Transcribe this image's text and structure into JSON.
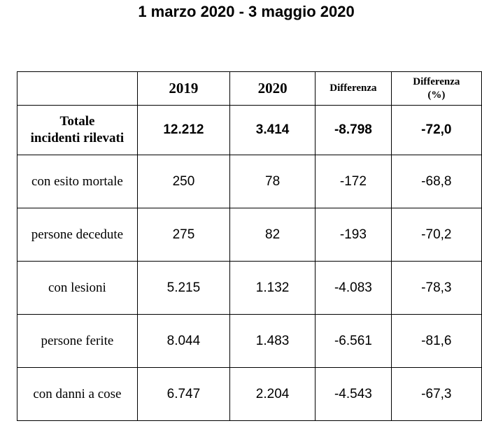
{
  "title": "1 marzo 2020 - 3 maggio 2020",
  "table": {
    "headers": [
      "",
      "2019",
      "2020",
      "Differenza",
      "Differenza (%)"
    ],
    "header_diff_pct_line1": "Differenza",
    "header_diff_pct_line2": "(%)",
    "total_row": {
      "label_line1": "Totale",
      "label_line2": "incidenti rilevati",
      "values": [
        "12.212",
        "3.414",
        "-8.798",
        "-72,0"
      ]
    },
    "rows": [
      {
        "label": "con esito mortale",
        "values": [
          "250",
          "78",
          "-172",
          "-68,8"
        ]
      },
      {
        "label": "persone decedute",
        "values": [
          "275",
          "82",
          "-193",
          "-70,2"
        ]
      },
      {
        "label": "con lesioni",
        "values": [
          "5.215",
          "1.132",
          "-4.083",
          "-78,3"
        ]
      },
      {
        "label": "persone ferite",
        "values": [
          "8.044",
          "1.483",
          "-6.561",
          "-81,6"
        ]
      },
      {
        "label": "con danni a cose",
        "values": [
          "6.747",
          "2.204",
          "-4.543",
          "-67,3"
        ]
      }
    ]
  }
}
